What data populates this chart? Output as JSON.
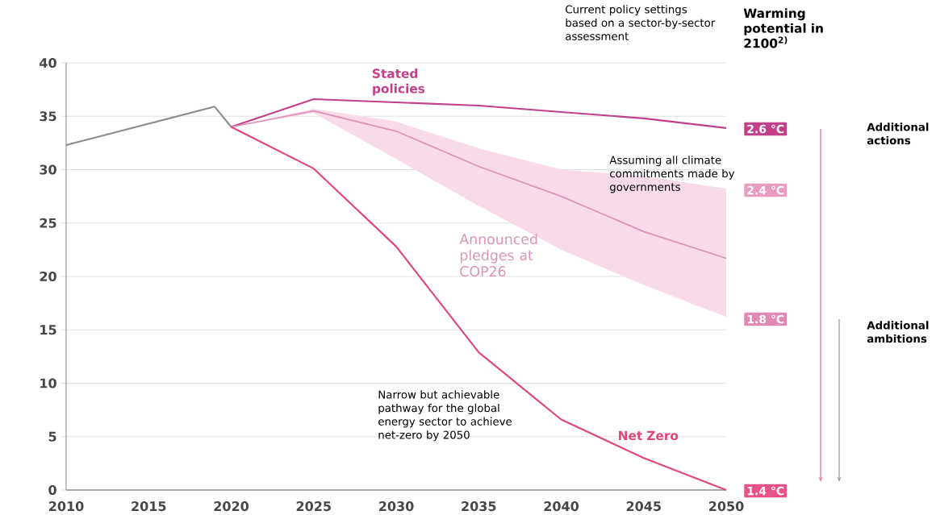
{
  "chart_data": {
    "type": "line",
    "series": [
      {
        "color": "#8c8c8c",
        "x": [
          2010,
          2019,
          2020
        ],
        "values": [
          32.3,
          35.9,
          34.0
        ]
      },
      {
        "name": "Stated policies",
        "color": "#c2408a",
        "x": [
          2020,
          2025,
          2030,
          2035,
          2040,
          2045,
          2050
        ],
        "values": [
          34.0,
          36.6,
          36.3,
          36.0,
          35.4,
          34.8,
          33.9
        ]
      },
      {
        "name": "Announced pledges at COP26",
        "color": "#dc93b9",
        "x": [
          2020,
          2025,
          2030,
          2035,
          2040,
          2045,
          2050
        ],
        "values": [
          34.0,
          35.5,
          33.6,
          30.3,
          27.5,
          24.2,
          21.7
        ],
        "lower": [
          34.0,
          35.3,
          31.0,
          26.6,
          22.5,
          19.2,
          16.2
        ],
        "upper": [
          34.0,
          35.7,
          34.5,
          32.0,
          30.0,
          29.4,
          28.2
        ]
      },
      {
        "name": "Net Zero",
        "color": "#e0457b",
        "x": [
          2020,
          2025,
          2030,
          2035,
          2040,
          2045,
          2050
        ],
        "values": [
          34.0,
          30.1,
          22.8,
          12.9,
          6.6,
          3.0,
          0
        ]
      }
    ],
    "xlim": [
      2010,
      2050
    ],
    "xticks": [
      2010,
      2015,
      2020,
      2025,
      2030,
      2035,
      2040,
      2045,
      2050
    ],
    "ylim": [
      0,
      40
    ],
    "yticks": [
      0,
      5,
      10,
      15,
      20,
      25,
      30,
      35,
      40
    ],
    "grid": "y",
    "annotations": [
      "Current policy settings based on a sector-by-sector assessment",
      "Assuming all climate commitments made by governments",
      "Narrow but achievable pathway for the global energy sector to achieve net-zero by 2050",
      "Warming potential in 2100$^{2)}$",
      "Additional actions",
      "Additional ambitions",
      "2.6 °C",
      "2.4 °C",
      "1.8 °C",
      "1.4 °C"
    ]
  }
}
